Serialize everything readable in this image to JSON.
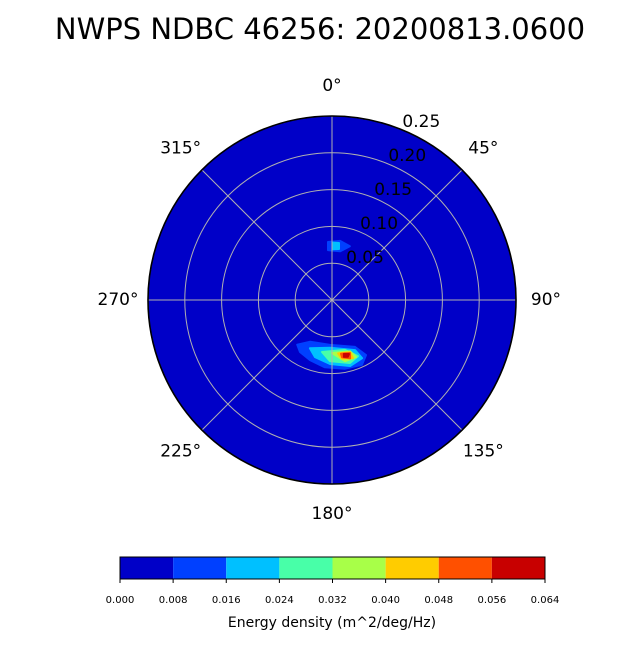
{
  "chart_data": {
    "type": "polar-contour",
    "title": "NWPS NDBC 46256: 20200813.0600",
    "direction": "clockwise",
    "zero_location": "N",
    "rlim": [
      0,
      0.25
    ],
    "rticks": [
      0.05,
      {
        "value": 0.1,
        "label": "0.10"
      },
      0.15,
      {
        "value": 0.2,
        "label": "0.20"
      },
      0.25
    ],
    "thetaticks": [
      {
        "value": 0,
        "label": "0°"
      },
      {
        "value": 45,
        "label": "45°"
      },
      {
        "value": 90,
        "label": "90°"
      },
      {
        "value": 135,
        "label": "135°"
      },
      {
        "value": 180,
        "label": "180°"
      },
      {
        "value": 225,
        "label": "225°"
      },
      {
        "value": 270,
        "label": "270°"
      },
      {
        "value": 315,
        "label": "315°"
      }
    ],
    "grid": true,
    "colorbar": {
      "label": "Energy density (m^2/deg/Hz)",
      "ticks": [
        {
          "value": 0,
          "label": "0.000"
        },
        {
          "value": 0.008,
          "label": "0.008"
        },
        {
          "value": 0.016,
          "label": "0.016"
        },
        {
          "value": 0.024,
          "label": "0.024"
        },
        {
          "value": 0.032,
          "label": "0.032"
        },
        {
          "value": 0.04,
          "label": "0.040"
        },
        {
          "value": 0.048,
          "label": "0.048"
        },
        {
          "value": 0.056,
          "label": "0.056"
        },
        {
          "value": 0.064,
          "label": "0.064"
        }
      ],
      "colors": [
        "#0000c8",
        "#0040ff",
        "#00c0ff",
        "#48ffa8",
        "#a8ff48",
        "#ffcc00",
        "#ff5000",
        "#c80000"
      ]
    },
    "contours": [
      {
        "level": 0.008,
        "theta": [
          217.9,
          207.6,
          182.5,
          153.9,
          148.3,
          155.2,
          169.3,
          186,
          200.1,
          211.6
        ],
        "r": [
          0.077,
          0.064,
          0.061,
          0.071,
          0.088,
          0.097,
          0.095,
          0.092,
          0.087,
          0.083
        ]
      },
      {
        "level": 0.016,
        "theta": [
          204.6,
          182.4,
          155.3,
          152.6,
          164.7,
          181.8,
          196.6
        ],
        "r": [
          0.072,
          0.065,
          0.075,
          0.089,
          0.093,
          0.087,
          0.081
        ]
      },
      {
        "level": 0.024,
        "theta": [
          190.9,
          165.4,
          155.1,
          164.1,
          181.9
        ],
        "r": [
          0.072,
          0.07,
          0.084,
          0.089,
          0.083
        ]
      },
      {
        "level": 0.032,
        "theta": [
          180,
          160.6,
          157.2,
          168
        ],
        "r": [
          0.072,
          0.074,
          0.084,
          0.085
        ]
      },
      {
        "level": 0.04,
        "theta": [
          173.5,
          160.9,
          160.1,
          170.4
        ],
        "r": [
          0.073,
          0.075,
          0.084,
          0.081
        ]
      },
      {
        "level": 0.048,
        "theta": [
          170.5,
          161.2,
          162.8,
          170
        ],
        "r": [
          0.074,
          0.076,
          0.083,
          0.079
        ]
      },
      {
        "level": 0.056,
        "theta": [
          167.5,
          162.5,
          164.3,
          168.1
        ],
        "r": [
          0.075,
          0.077,
          0.08,
          0.079
        ]
      },
      {
        "level": 0.008,
        "theta": [
          356.1,
          7.7,
          18.4,
          9.3,
          355.4
        ],
        "r": [
          0.079,
          0.081,
          0.077,
          0.067,
          0.068
        ]
      },
      {
        "level": 0.016,
        "theta": [
          1,
          7,
          7.8,
          1.1
        ],
        "r": [
          0.078,
          0.078,
          0.07,
          0.069
        ]
      }
    ]
  }
}
